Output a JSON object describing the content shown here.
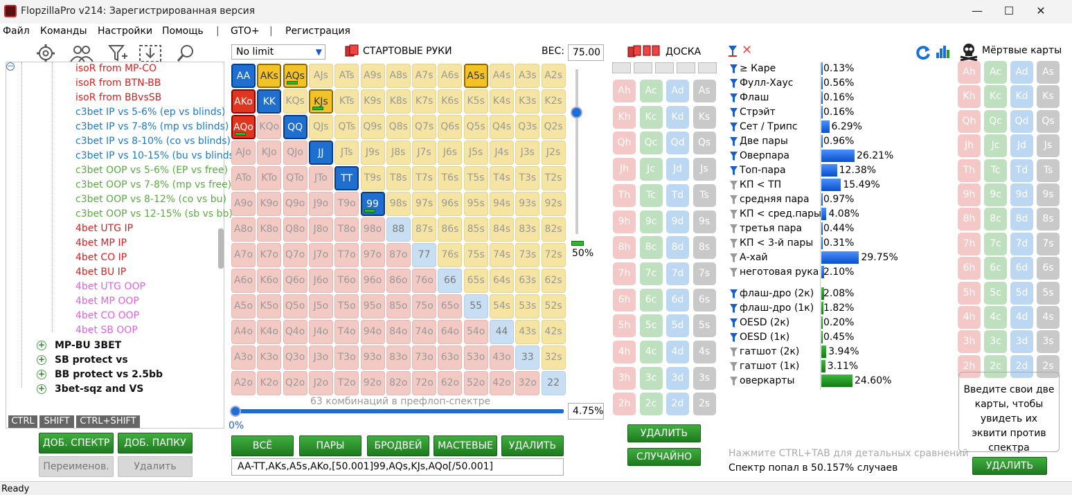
{
  "window": {
    "title": "FlopzillaPro v214: Зарегистрированная версия",
    "min": "—",
    "max": "☐",
    "close": "✕"
  },
  "menu": [
    "Файл",
    "Команды",
    "Настройки",
    "Помощь",
    "|",
    "GTO+",
    "|",
    "Регистрация"
  ],
  "tree": {
    "items": [
      {
        "label": "isoR from MP-CO",
        "color": "#d62020"
      },
      {
        "label": "isoR from BTN-BB",
        "color": "#d62020"
      },
      {
        "label": "isoR from BBvsSB",
        "color": "#d62020"
      },
      {
        "label": "c3bet IP vs 5-6% (ep vs blinds)",
        "color": "#1a7ac8"
      },
      {
        "label": "c3bet IP vs 7-8% (mp vs blinds)",
        "color": "#1a7ac8"
      },
      {
        "label": "c3bet IP vs 8-10% (co vs blinds)",
        "color": "#1a7ac8"
      },
      {
        "label": "c3bet IP vs 10-15% (bu vs blinds)",
        "color": "#1a7ac8"
      },
      {
        "label": "c3bet OOP vs 5-6% (EP vs free)",
        "color": "#5aaa40"
      },
      {
        "label": "c3bet OOP vs 7-8% (mp vs free)",
        "color": "#5aaa40"
      },
      {
        "label": "c3bet OOP vs 8-12% (co vs bu)",
        "color": "#5aaa40"
      },
      {
        "label": "c3bet OOP vs 12-15% (sb vs bb)",
        "color": "#5aaa40"
      },
      {
        "label": "4bet UTG IP",
        "color": "#d62020"
      },
      {
        "label": "4bet MP IP",
        "color": "#d62020"
      },
      {
        "label": "4bet CO IP",
        "color": "#d62020"
      },
      {
        "label": "4bet BU IP",
        "color": "#d62020"
      },
      {
        "label": "4bet UTG OOP",
        "color": "#e060e0"
      },
      {
        "label": "4bet MP OOP",
        "color": "#e060e0"
      },
      {
        "label": "4bet CO OOP",
        "color": "#e060e0"
      },
      {
        "label": "4bet SB OOP",
        "color": "#e060e0"
      }
    ],
    "folders": [
      "MP-BU 3BET",
      "SB protect vs",
      "BB protect vs 2.5bb",
      "3bet-sqz and VS"
    ],
    "tabs": [
      "CTRL",
      "SHIFT",
      "CTRL+SHIFT"
    ]
  },
  "left_buttons": {
    "add_range": "ДОБ. СПЕКТР",
    "add_folder": "ДОБ. ПАПКУ",
    "rename": "Переименов.",
    "delete": "Удалить"
  },
  "range": {
    "mode": "No limit",
    "header": "СТАРТОВЫЕ РУКИ",
    "weight_label": "ВЕС:",
    "weight": "75.00",
    "slider_pct": "50%",
    "combos": "63 комбинаций в префлоп-спектре",
    "pct": "0%",
    "pct_box": "4.75%",
    "text": "AA-TT,AKs,A5s,AKo,[50.001]99,AQs,KJs,AQo[/50.001]",
    "buttons": [
      "ВСЁ",
      "ПАРЫ",
      "БРОДВЕЙ",
      "МАСТЕВЫЕ",
      "УДАЛИТЬ"
    ],
    "selected": [
      "AA",
      "KK",
      "QQ",
      "JJ",
      "TT",
      "99",
      "AKs",
      "AQs",
      "A5s",
      "KJs",
      "AKo",
      "AQo"
    ],
    "half": [
      "99",
      "AQs",
      "KJs",
      "AQo"
    ]
  },
  "ranks": [
    "A",
    "K",
    "Q",
    "J",
    "T",
    "9",
    "8",
    "7",
    "6",
    "5",
    "4",
    "3",
    "2"
  ],
  "board": {
    "header": "ДОСКА",
    "delete": "УДАЛИТЬ",
    "random": "СЛУЧАЙНО"
  },
  "stats": {
    "hands": [
      {
        "label": "≥ Каре",
        "val": "0.13%",
        "pct": 0.13,
        "f": "#1a5cc8"
      },
      {
        "label": "Фулл-Хаус",
        "val": "0.56%",
        "pct": 0.56,
        "f": "#1a5cc8"
      },
      {
        "label": "Флаш",
        "val": "0.16%",
        "pct": 0.16,
        "f": "#1a5cc8"
      },
      {
        "label": "Стрэйт",
        "val": "0.16%",
        "pct": 0.16,
        "f": "#1a5cc8"
      },
      {
        "label": "Сет / Трипс",
        "val": "6.29%",
        "pct": 6.29,
        "f": "#1a5cc8"
      },
      {
        "label": "Две пары",
        "val": "0.96%",
        "pct": 0.96,
        "f": "#1a5cc8"
      },
      {
        "label": "Оверпара",
        "val": "26.21%",
        "pct": 26.21,
        "f": "#1a5cc8"
      },
      {
        "label": "Топ-пара",
        "val": "12.38%",
        "pct": 12.38,
        "f": "#1a5cc8"
      },
      {
        "label": "КП < ТП",
        "val": "15.49%",
        "pct": 15.49,
        "f": "#999"
      },
      {
        "label": "средняя пара",
        "val": "0.97%",
        "pct": 0.97,
        "f": "#999"
      },
      {
        "label": "КП < сред.пары",
        "val": "4.08%",
        "pct": 4.08,
        "f": "#999"
      },
      {
        "label": "третья пара",
        "val": "0.44%",
        "pct": 0.44,
        "f": "#999"
      },
      {
        "label": "КП < 3-й пары",
        "val": "0.31%",
        "pct": 0.31,
        "f": "#999"
      },
      {
        "label": "А-хай",
        "val": "29.75%",
        "pct": 29.75,
        "f": "#999"
      },
      {
        "label": "неготовая рука",
        "val": "2.10%",
        "pct": 2.1,
        "f": "#999"
      }
    ],
    "draws": [
      {
        "label": "флаш-дро (2к)",
        "val": "2.08%",
        "pct": 2.08,
        "f": "#1a5cc8"
      },
      {
        "label": "флаш-дро (1к)",
        "val": "1.82%",
        "pct": 1.82,
        "f": "#1a5cc8"
      },
      {
        "label": "OESD (2к)",
        "val": "0.20%",
        "pct": 0.2,
        "f": "#1a5cc8"
      },
      {
        "label": "OESD (1к)",
        "val": "0.45%",
        "pct": 0.45,
        "f": "#1a5cc8"
      },
      {
        "label": "гатшот (2к)",
        "val": "3.94%",
        "pct": 3.94,
        "f": "#999"
      },
      {
        "label": "гатшот (1к)",
        "val": "3.11%",
        "pct": 3.11,
        "f": "#999"
      },
      {
        "label": "оверкарты",
        "val": "24.60%",
        "pct": 24.6,
        "f": "#999"
      }
    ],
    "hint": "Нажмите CTRL+TAB для детальных сравнений",
    "hit": "Спектр попал в 50.157% случаев"
  },
  "dead": {
    "header": "Мёртвые карты",
    "info": "Введите свои две карты, чтобы увидеть их эквити против спектра",
    "delete": "УДАЛИТЬ"
  },
  "status": "Ready"
}
